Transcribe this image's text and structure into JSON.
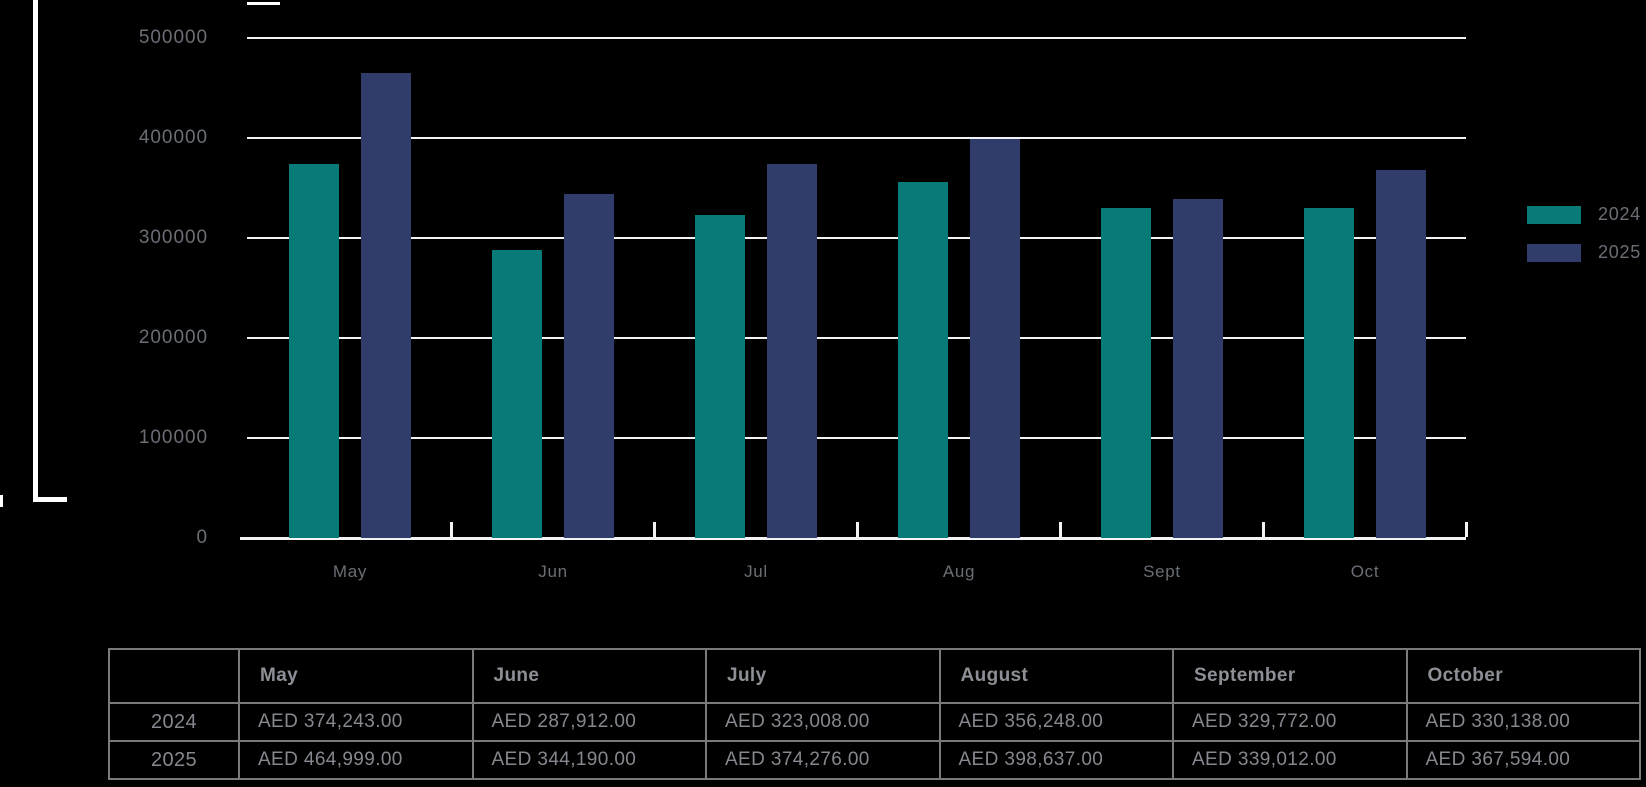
{
  "colors": {
    "background": "#000000",
    "series_2024": "#087A77",
    "series_2025": "#303D6A",
    "gridline": "#F2F3F5",
    "axis_text": "#6A6E75",
    "table_border": "#7A7A7A",
    "table_text": "#85888E"
  },
  "chart_data": {
    "type": "bar",
    "categories": [
      "May",
      "Jun",
      "Jul",
      "Aug",
      "Sept",
      "Oct"
    ],
    "series": [
      {
        "name": "2024",
        "color": "#087A77",
        "values": [
          374243,
          287912,
          323008,
          356248,
          329772,
          330138
        ]
      },
      {
        "name": "2025",
        "color": "#303D6A",
        "values": [
          464999,
          344190,
          374276,
          398637,
          339012,
          367594
        ]
      }
    ],
    "ylim": [
      0,
      500000
    ],
    "ytick_step": 100000,
    "yticks": [
      "0",
      "100000",
      "200000",
      "300000",
      "400000",
      "500000"
    ],
    "xlabel": "",
    "ylabel": "",
    "grid": "horizontal",
    "legend_position": "right"
  },
  "legend": {
    "items": [
      {
        "label": "2024",
        "color": "#087A77"
      },
      {
        "label": "2025",
        "color": "#303D6A"
      }
    ]
  },
  "table": {
    "column_headers": [
      "",
      "May",
      "June",
      "July",
      "August",
      "September",
      "October"
    ],
    "rows": [
      {
        "header": "2024",
        "cells": [
          "AED 374,243.00",
          "AED 287,912.00",
          "AED 323,008.00",
          "AED 356,248.00",
          "AED 329,772.00",
          "AED 330,138.00"
        ]
      },
      {
        "header": "2025",
        "cells": [
          "AED 464,999.00",
          "AED 344,190.00",
          "AED 374,276.00",
          "AED 398,637.00",
          "AED 339,012.00",
          "AED 367,594.00"
        ]
      }
    ]
  }
}
